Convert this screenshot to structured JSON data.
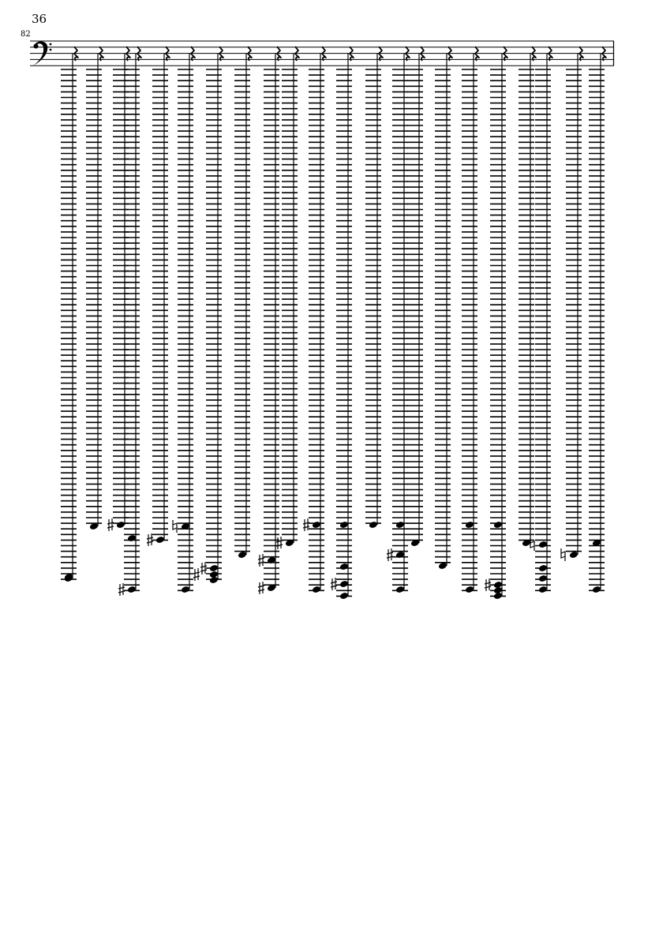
{
  "page": {
    "page_number": "36",
    "measure_number": "82"
  },
  "score": {
    "clef": "bass",
    "ink_color": "#000000"
  }
}
